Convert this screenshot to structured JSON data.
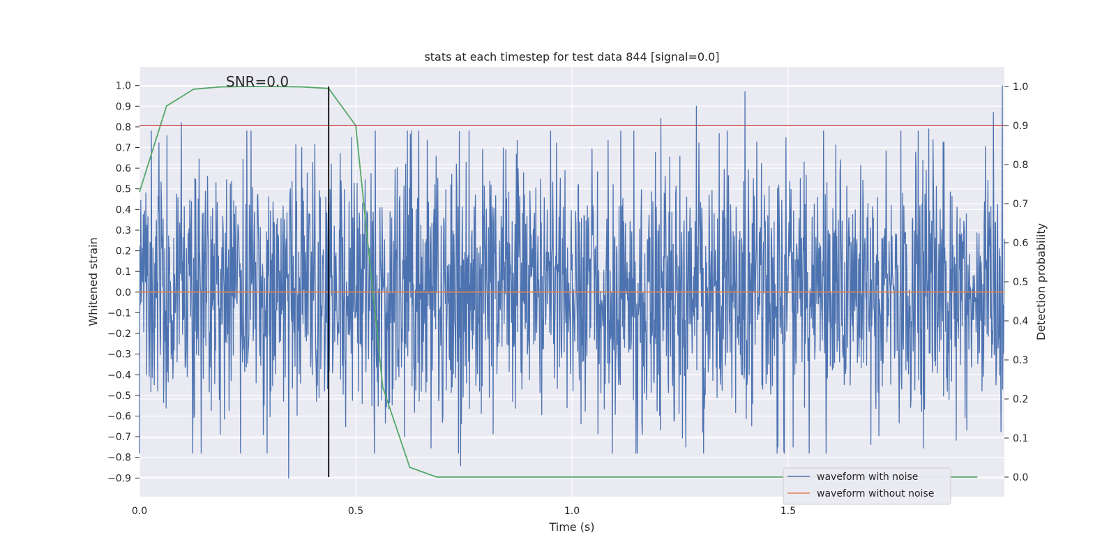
{
  "chart_data": {
    "type": "line",
    "title": "stats at each timestep for test data 844 [signal=0.0]",
    "xlabel": "Time (s)",
    "ylabel": "Whitened strain",
    "y2label": "Detection probability",
    "annotation": "SNR=0.0",
    "xlim": [
      0.0,
      2.0
    ],
    "ylim": [
      -0.99,
      1.09
    ],
    "y2lim": [
      -0.05,
      1.05
    ],
    "x_ticks": [
      "0.0",
      "0.5",
      "1.0",
      "1.5"
    ],
    "x_tick_values": [
      0.0,
      0.5,
      1.0,
      1.5
    ],
    "y_ticks": [
      "1.0",
      "0.9",
      "0.8",
      "0.7",
      "0.6",
      "0.5",
      "0.4",
      "0.3",
      "0.2",
      "0.1",
      "0.0",
      "−0.1",
      "−0.2",
      "−0.3",
      "−0.4",
      "−0.5",
      "−0.6",
      "−0.7",
      "−0.8",
      "−0.9"
    ],
    "y_tick_values": [
      1.0,
      0.9,
      0.8,
      0.7,
      0.6,
      0.5,
      0.4,
      0.3,
      0.2,
      0.1,
      0.0,
      -0.1,
      -0.2,
      -0.3,
      -0.4,
      -0.5,
      -0.6,
      -0.7,
      -0.8,
      -0.9
    ],
    "y2_ticks": [
      "1.0",
      "0.9",
      "0.8",
      "0.7",
      "0.6",
      "0.5",
      "0.4",
      "0.3",
      "0.2",
      "0.1",
      "0.0"
    ],
    "y2_tick_values": [
      1.0,
      0.9,
      0.8,
      0.7,
      0.6,
      0.5,
      0.4,
      0.3,
      0.2,
      0.1,
      0.0
    ],
    "grid": true,
    "legend_position": "bottom-right",
    "series": [
      {
        "name": "waveform with noise",
        "axis": "left",
        "color": "#4c72b0",
        "style": "dense-noise",
        "n_samples": 2048,
        "seed": 844,
        "sigma": 0.32,
        "notable_peaks": [
          {
            "x": 0.0,
            "y": -0.78
          },
          {
            "x": 0.097,
            "y": 0.82
          },
          {
            "x": 0.345,
            "y": -0.9
          },
          {
            "x": 0.743,
            "y": -0.84
          },
          {
            "x": 1.093,
            "y": -0.78
          },
          {
            "x": 1.206,
            "y": 0.84
          },
          {
            "x": 1.288,
            "y": 0.9
          },
          {
            "x": 1.4,
            "y": 0.97
          },
          {
            "x": 1.476,
            "y": -0.75
          },
          {
            "x": 1.511,
            "y": -0.75
          },
          {
            "x": 1.825,
            "y": 0.79
          },
          {
            "x": 1.975,
            "y": 0.87
          },
          {
            "x": 1.995,
            "y": 1.0
          }
        ]
      },
      {
        "name": "waveform without noise",
        "axis": "left",
        "color": "#dd8452",
        "x": [
          0.0,
          2.0
        ],
        "y": [
          0.0,
          0.0
        ]
      },
      {
        "name": "detection probability",
        "axis": "right",
        "color": "#55a868",
        "x": [
          0.0,
          0.0625,
          0.125,
          0.1875,
          0.25,
          0.3125,
          0.375,
          0.4375,
          0.5,
          0.5625,
          0.625,
          0.6875,
          0.75,
          0.8125,
          0.875,
          0.9375,
          1.0,
          1.0625,
          1.125,
          1.1875,
          1.25,
          1.3125,
          1.375,
          1.4375,
          1.5,
          1.5625,
          1.625,
          1.6875,
          1.75,
          1.8125,
          1.875,
          1.9375
        ],
        "y": [
          0.73,
          0.95,
          0.993,
          0.999,
          1.0,
          1.0,
          0.999,
          0.995,
          0.9,
          0.23,
          0.025,
          0.0,
          0.0,
          0.0,
          0.0,
          0.0,
          0.0,
          0.0,
          0.0,
          0.0,
          0.0,
          0.0,
          0.0,
          0.0,
          0.0,
          0.0,
          0.0,
          0.0,
          0.0,
          0.0,
          0.0,
          0.0
        ]
      },
      {
        "name": "threshold",
        "axis": "right",
        "color": "#c44e52",
        "x": [
          0.0,
          2.0
        ],
        "y": [
          0.9,
          0.9
        ]
      },
      {
        "name": "marker",
        "axis": "right",
        "color": "#000000",
        "x": [
          0.4375,
          0.4375
        ],
        "y": [
          0.0,
          1.0
        ]
      }
    ]
  }
}
